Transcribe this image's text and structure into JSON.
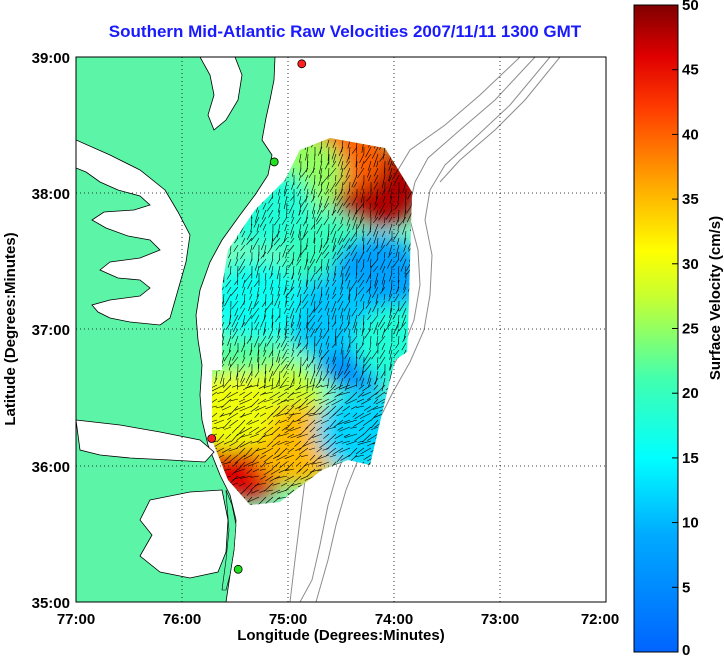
{
  "title": "Southern Mid-Atlantic Raw Velocities 2007/11/11 1300 GMT",
  "xlabel": "Longitude (Degrees:Minutes)",
  "ylabel": "Latitude (Degrees:Minutes)",
  "colorbar_label": "Surface Velocity (cm/s)",
  "x_ticks": [
    "77:00",
    "76:00",
    "75:00",
    "74:00",
    "73:00",
    "72:00"
  ],
  "y_ticks": [
    "39:00",
    "38:00",
    "37:00",
    "36:00",
    "35:00"
  ],
  "colorbar_ticks": [
    "50",
    "45",
    "40",
    "35",
    "30",
    "25",
    "20",
    "15",
    "10",
    "5",
    "0"
  ],
  "colors": {
    "land": "#5cf5a8",
    "title": "#1a1aff",
    "bathymetry": "#8c8c8c",
    "site_marker_red": "#ff2020",
    "site_marker_green": "#20e020"
  },
  "chart_data": {
    "type": "heatmap",
    "title": "Southern Mid-Atlantic Raw Velocities 2007/11/11 1300 GMT",
    "xlabel": "Longitude (Degrees:Minutes)",
    "ylabel": "Latitude (Degrees:Minutes)",
    "xlim": [
      -77.0,
      -72.0
    ],
    "ylim": [
      35.0,
      39.0
    ],
    "colorbar": {
      "label": "Surface Velocity (cm/s)",
      "min": 0,
      "max": 50,
      "colormap": "jet"
    },
    "grid": true,
    "regions": [
      {
        "lon": -74.15,
        "lat": 38.05,
        "speed": 48
      },
      {
        "lon": -74.5,
        "lat": 38.3,
        "speed": 40
      },
      {
        "lon": -74.9,
        "lat": 38.15,
        "speed": 25
      },
      {
        "lon": -75.2,
        "lat": 37.9,
        "speed": 18
      },
      {
        "lon": -74.6,
        "lat": 37.55,
        "speed": 20
      },
      {
        "lon": -74.15,
        "lat": 37.4,
        "speed": 8
      },
      {
        "lon": -74.3,
        "lat": 36.85,
        "speed": 5
      },
      {
        "lon": -74.6,
        "lat": 37.1,
        "speed": 11
      },
      {
        "lon": -75.3,
        "lat": 37.2,
        "speed": 16
      },
      {
        "lon": -75.4,
        "lat": 36.65,
        "speed": 22
      },
      {
        "lon": -75.1,
        "lat": 36.45,
        "speed": 28
      },
      {
        "lon": -75.4,
        "lat": 36.05,
        "speed": 46
      },
      {
        "lon": -74.9,
        "lat": 36.15,
        "speed": 35
      },
      {
        "lon": -74.3,
        "lat": 36.25,
        "speed": 12
      },
      {
        "lon": -73.95,
        "lat": 36.9,
        "speed": 18
      },
      {
        "lon": -75.55,
        "lat": 36.4,
        "speed": 30
      }
    ],
    "sites": [
      {
        "lon": -74.87,
        "lat": 38.95,
        "color": "red"
      },
      {
        "lon": -75.13,
        "lat": 38.23,
        "color": "green"
      },
      {
        "lon": -75.72,
        "lat": 36.2,
        "color": "red"
      },
      {
        "lon": -75.47,
        "lat": 35.24,
        "color": "green"
      }
    ]
  }
}
